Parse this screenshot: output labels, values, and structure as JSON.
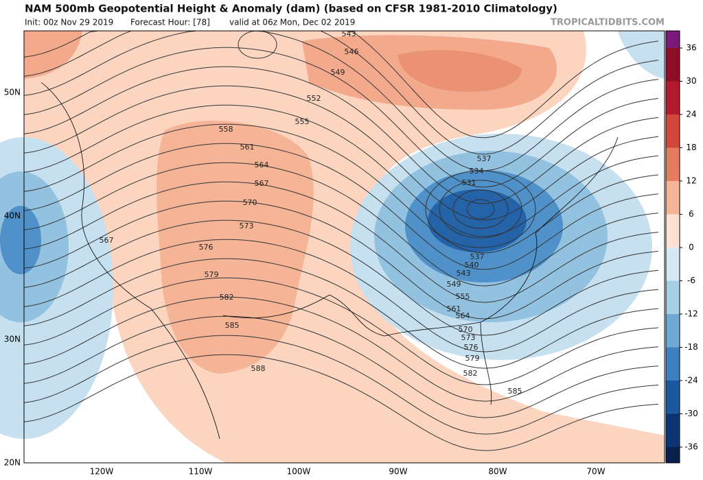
{
  "header": {
    "title": "NAM 500mb Geopotential Height & Anomaly (dam) (based on CFSR 1981-2010 Climatology)",
    "init": "Init: 00z Nov 29 2019",
    "forecast_hour": "Forecast Hour: [78]",
    "valid": "valid at 06z Mon, Dec 02 2019",
    "source": "TROPICALTIDBITS.COM"
  },
  "map": {
    "lat_labels": [
      "50N",
      "40N",
      "30N",
      "20N"
    ],
    "lon_labels": [
      "120W",
      "110W",
      "100W",
      "90W",
      "80W",
      "70W"
    ],
    "contour_labels": [
      "543",
      "546",
      "549",
      "552",
      "555",
      "558",
      "561",
      "564",
      "567",
      "570",
      "573",
      "576",
      "579",
      "582",
      "585",
      "588",
      "567",
      "537",
      "534",
      "531",
      "537",
      "540",
      "543",
      "549",
      "555",
      "561",
      "564",
      "570",
      "573",
      "576",
      "579",
      "582",
      "585"
    ]
  },
  "colorbar": {
    "ticks": [
      36,
      30,
      24,
      18,
      12,
      6,
      0,
      -6,
      -12,
      -18,
      -24,
      -30,
      -36
    ],
    "colors": [
      "#8c0d26",
      "#b31b2c",
      "#d1473b",
      "#e57e61",
      "#f3b49a",
      "#fde1d3",
      "#d5e8f3",
      "#a7cfe5",
      "#6eaad4",
      "#3d80bf",
      "#1c58a0",
      "#0b3572"
    ],
    "top_color": "#7a1b7a",
    "bottom_color": "#08204c"
  }
}
